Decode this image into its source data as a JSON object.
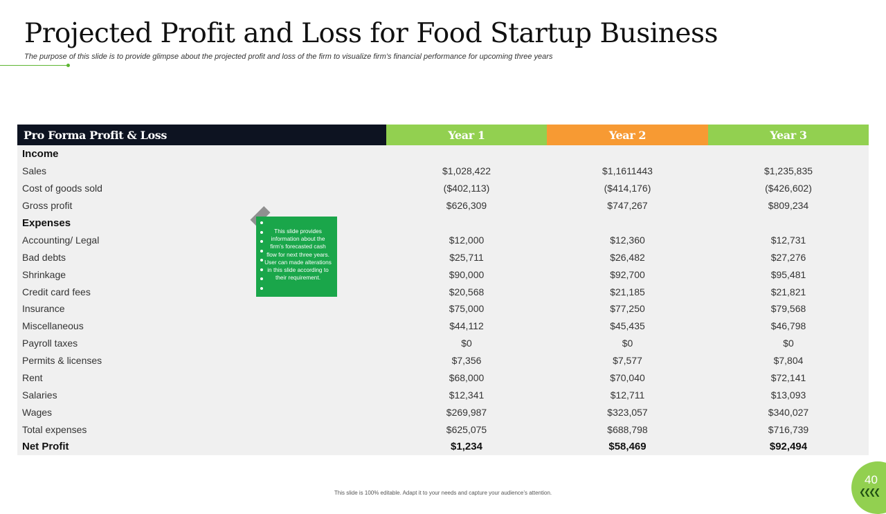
{
  "slide": {
    "title": "Projected Profit and Loss for Food Startup Business",
    "subtitle": "The purpose of this slide is to provide glimpse about the projected profit and loss of the firm to visualize firm’s financial performance for upcoming three years",
    "footer": "This slide is 100% editable. Adapt it to your needs and capture your audience’s attention.",
    "page_number": "40",
    "colors": {
      "accent_green": "#92d050",
      "accent_orange": "#f79a33",
      "header_dark": "#0d1321",
      "note_green": "#1aa64a"
    }
  },
  "table": {
    "headers": [
      "Pro Forma Profit & Loss",
      "Year 1",
      "Year 2",
      "Year 3"
    ],
    "rows": [
      {
        "label": "Income",
        "values": [
          "",
          "",
          ""
        ]
      },
      {
        "label": "Sales",
        "values": [
          "$1,028,422",
          "$1,1611443",
          "$1,235,835"
        ]
      },
      {
        "label": "Cost of goods sold",
        "values": [
          "($402,113)",
          "($414,176)",
          "($426,602)"
        ]
      },
      {
        "label": "Gross profit",
        "values": [
          "$626,309",
          "$747,267",
          "$809,234"
        ]
      },
      {
        "label": "Expenses",
        "values": [
          "",
          "",
          ""
        ]
      },
      {
        "label": "Accounting/ Legal",
        "values": [
          "$12,000",
          "$12,360",
          "$12,731"
        ]
      },
      {
        "label": "Bad debts",
        "values": [
          "$25,711",
          "$26,482",
          "$27,276"
        ]
      },
      {
        "label": "Shrinkage",
        "values": [
          "$90,000",
          "$92,700",
          "$95,481"
        ]
      },
      {
        "label": "Credit card fees",
        "values": [
          "$20,568",
          "$21,185",
          "$21,821"
        ]
      },
      {
        "label": "Insurance",
        "values": [
          "$75,000",
          "$77,250",
          "$79,568"
        ]
      },
      {
        "label": "Miscellaneous",
        "values": [
          "$44,112",
          "$45,435",
          "$46,798"
        ]
      },
      {
        "label": "Payroll taxes",
        "values": [
          "$0",
          "$0",
          "$0"
        ]
      },
      {
        "label": "Permits & licenses",
        "values": [
          "$7,356",
          "$7,577",
          "$7,804"
        ]
      },
      {
        "label": "Rent",
        "values": [
          "$68,000",
          "$70,040",
          "$72,141"
        ]
      },
      {
        "label": "Salaries",
        "values": [
          "$12,341",
          "$12,711",
          "$13,093"
        ]
      },
      {
        "label": "Wages",
        "values": [
          "$269,987",
          "$323,057",
          "$340,027"
        ]
      },
      {
        "label": "Total expenses",
        "values": [
          "$625,075",
          "$688,798",
          "$716,739"
        ]
      },
      {
        "label": "Net Profit",
        "values": [
          "$1,234",
          "$58,469",
          "$92,494"
        ]
      }
    ]
  },
  "note": {
    "text": "This slide provides information about the firm’s forecasted cash flow for next three years. User can made alterations in this slide according to their requirement."
  }
}
